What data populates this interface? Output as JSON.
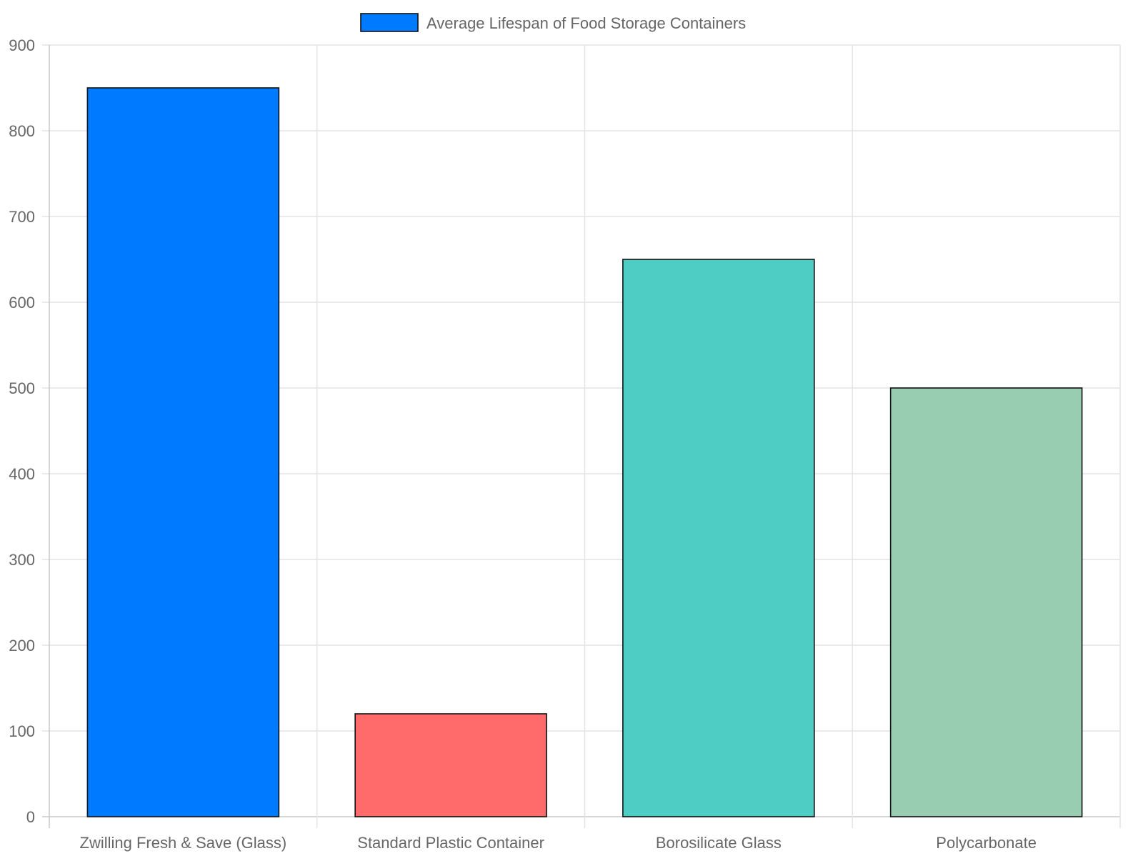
{
  "chart_data": {
    "type": "bar",
    "title": "",
    "xlabel": "",
    "ylabel": "",
    "categories": [
      "Zwilling Fresh & Save (Glass)",
      "Standard Plastic Container",
      "Borosilicate Glass",
      "Polycarbonate"
    ],
    "series": [
      {
        "name": "Average Lifespan of Food Storage Containers",
        "values": [
          850,
          120,
          650,
          500
        ],
        "colors": [
          "#007bff",
          "#ff6b6b",
          "#4ecdc4",
          "#98cdb1"
        ],
        "legend_color": "#007bff"
      }
    ],
    "ylim": [
      0,
      900
    ],
    "yticks": [
      "0",
      "100",
      "200",
      "300",
      "400",
      "500",
      "600",
      "700",
      "800",
      "900"
    ],
    "grid": true,
    "legend_position": "top-center"
  }
}
